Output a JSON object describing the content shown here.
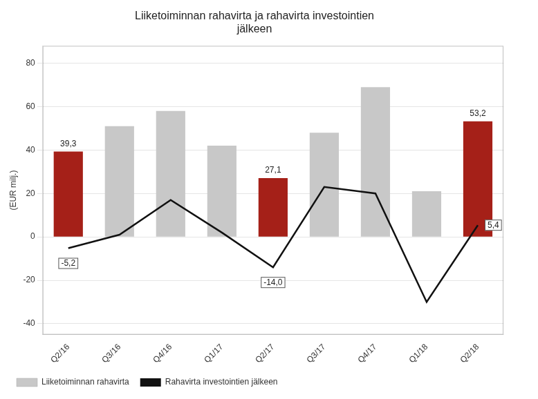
{
  "chart_data": {
    "type": "bar",
    "title": "Liiketoiminnan rahavirta ja rahavirta investointien\njälkeen",
    "ylabel": "(EUR milj.)",
    "categories": [
      "Q2/16",
      "Q3/16",
      "Q4/16",
      "Q1/17",
      "Q2/17",
      "Q3/17",
      "Q4/17",
      "Q1/18",
      "Q2/18"
    ],
    "series": [
      {
        "name": "Liiketoiminnan rahavirta",
        "type": "bar",
        "color": "#c8c8c8",
        "colors": [
          "#a52018",
          "#c8c8c8",
          "#c8c8c8",
          "#c8c8c8",
          "#a52018",
          "#c8c8c8",
          "#c8c8c8",
          "#c8c8c8",
          "#a52018"
        ],
        "values": [
          39.3,
          51.0,
          58.0,
          42.0,
          27.1,
          48.0,
          69.0,
          21.0,
          53.2
        ],
        "value_labels": [
          "39,3",
          null,
          null,
          null,
          "27,1",
          null,
          null,
          null,
          "53,2"
        ]
      },
      {
        "name": "Rahavirta investointien jälkeen",
        "type": "line",
        "color": "#111111",
        "values": [
          -5.2,
          1.0,
          17.0,
          2.0,
          -14.0,
          23.0,
          20.0,
          -30.0,
          5.4
        ],
        "value_labels": [
          "-5,2",
          null,
          null,
          null,
          "-14,0",
          null,
          null,
          null,
          "5,4"
        ]
      }
    ],
    "ylim": [
      -45,
      88
    ],
    "yticks": [
      -40,
      -20,
      0,
      20,
      40,
      60,
      80
    ],
    "grid": true,
    "legend": "bottom",
    "data_labels": true
  }
}
